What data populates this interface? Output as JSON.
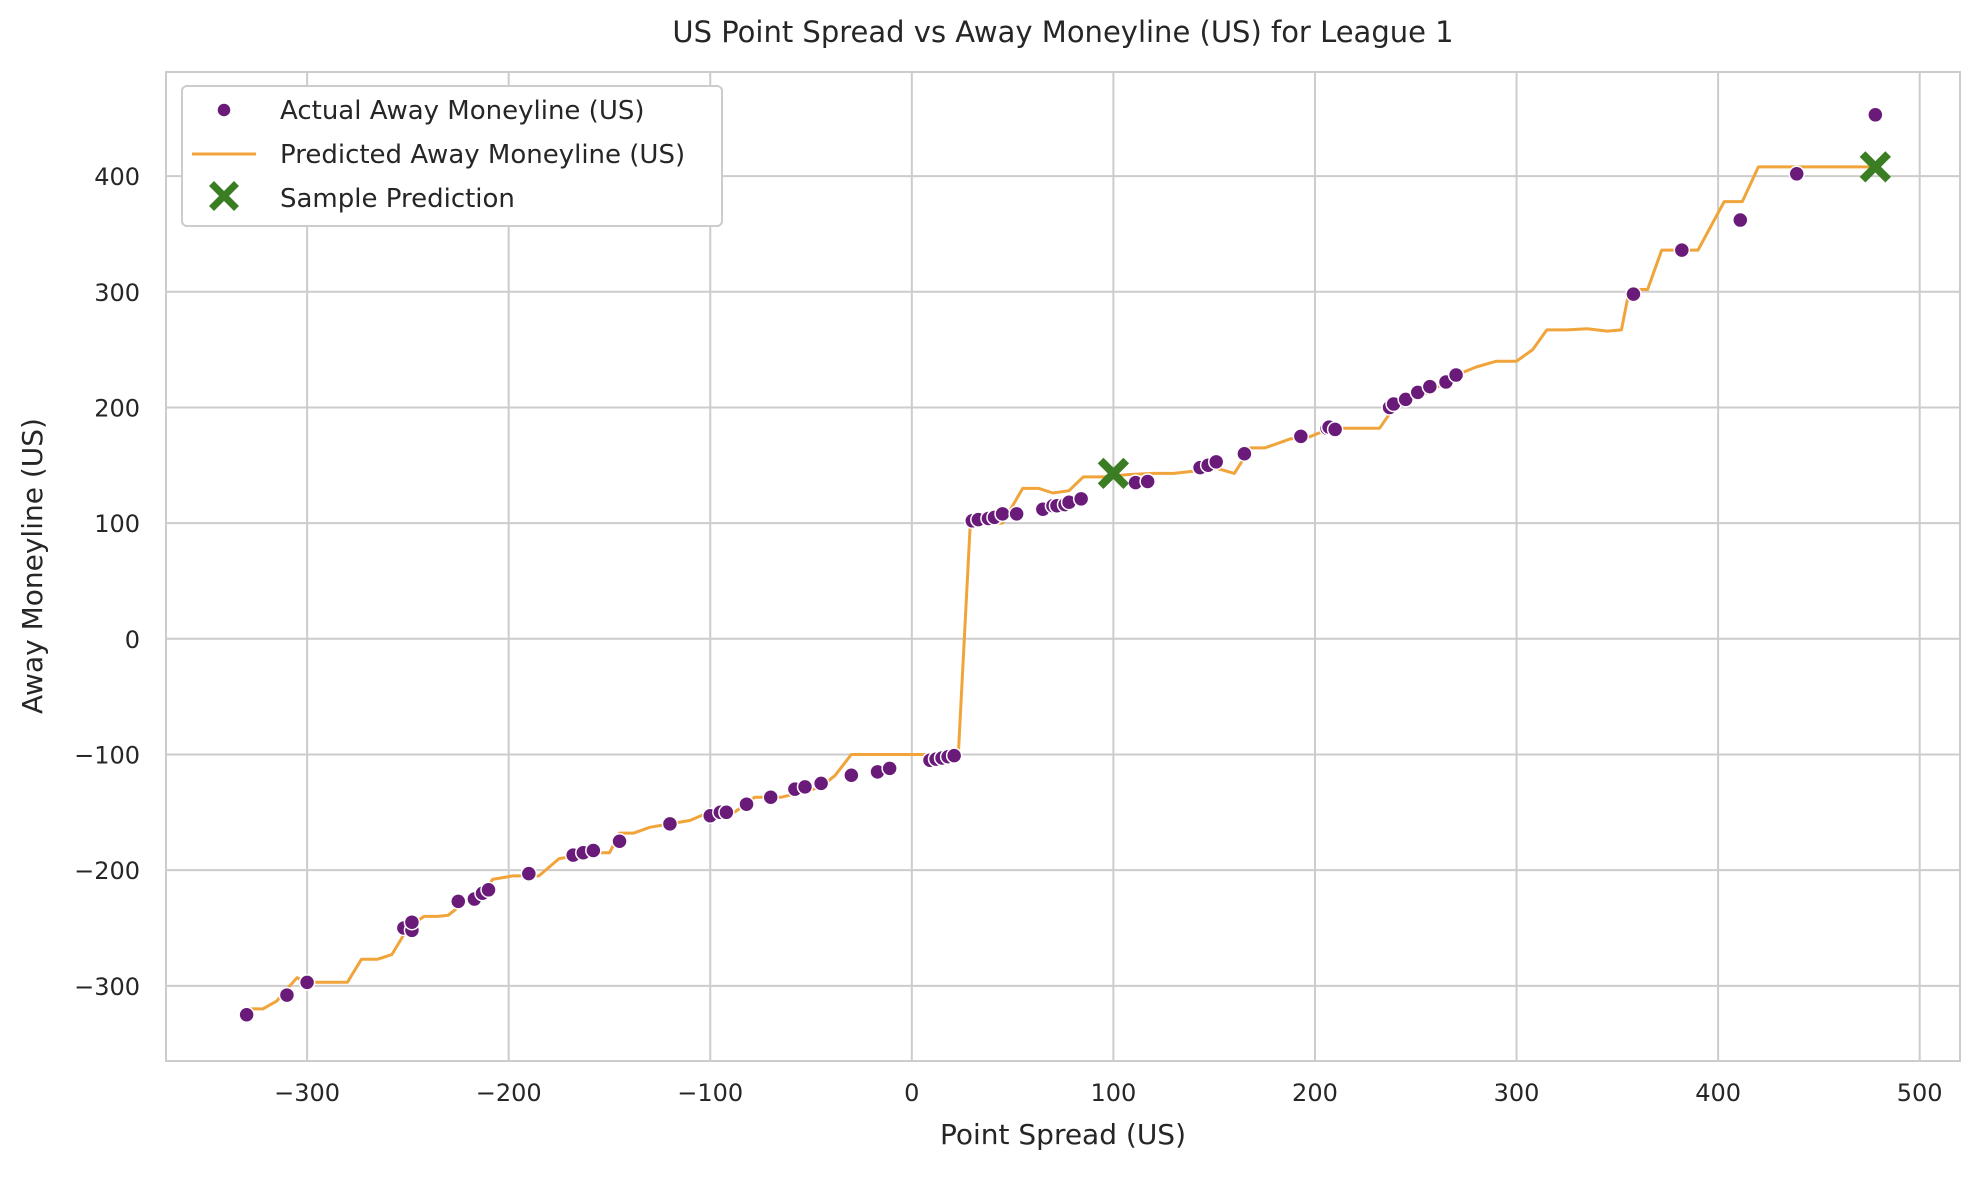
{
  "chart_data": {
    "type": "scatter",
    "title": "US Point Spread vs Away Moneyline (US) for League 1",
    "xlabel": "Point Spread (US)",
    "ylabel": "Away Moneyline (US)",
    "xlim": [
      -370,
      520
    ],
    "ylim": [
      -365,
      490
    ],
    "xticks": [
      -300,
      -200,
      -100,
      0,
      100,
      200,
      300,
      400,
      500
    ],
    "xtick_labels": [
      "−300",
      "−200",
      "−100",
      "0",
      "100",
      "200",
      "300",
      "400",
      "500"
    ],
    "yticks": [
      -300,
      -200,
      -100,
      0,
      100,
      200,
      300,
      400
    ],
    "ytick_labels": [
      "−300",
      "−200",
      "−100",
      "0",
      "100",
      "200",
      "300",
      "400"
    ],
    "grid": true,
    "legend_position": "top-left",
    "colors": {
      "actual": "#6a1b7a",
      "predicted": "#f0a43a",
      "sample": "#3a7d22",
      "grid": "#cccccc",
      "spine": "#cccccc",
      "text": "#262626"
    },
    "legend": [
      {
        "label": "Actual Away Moneyline (US)",
        "marker": "circle"
      },
      {
        "label": "Predicted Away Moneyline (US)",
        "marker": "line"
      },
      {
        "label": "Sample Prediction",
        "marker": "x"
      }
    ],
    "series": [
      {
        "name": "Actual Away Moneyline (US)",
        "type": "scatter",
        "points": [
          [
            -330,
            -325
          ],
          [
            -310,
            -308
          ],
          [
            -300,
            -297
          ],
          [
            -252,
            -250
          ],
          [
            -248,
            -252
          ],
          [
            -248,
            -245
          ],
          [
            -225,
            -227
          ],
          [
            -217,
            -225
          ],
          [
            -213,
            -220
          ],
          [
            -210,
            -217
          ],
          [
            -190,
            -203
          ],
          [
            -168,
            -187
          ],
          [
            -163,
            -185
          ],
          [
            -158,
            -183
          ],
          [
            -145,
            -175
          ],
          [
            -120,
            -160
          ],
          [
            -100,
            -153
          ],
          [
            -95,
            -150
          ],
          [
            -92,
            -150
          ],
          [
            -82,
            -143
          ],
          [
            -70,
            -137
          ],
          [
            -58,
            -130
          ],
          [
            -53,
            -128
          ],
          [
            -45,
            -125
          ],
          [
            -30,
            -118
          ],
          [
            -17,
            -115
          ],
          [
            -11,
            -112
          ],
          [
            9,
            -105
          ],
          [
            12,
            -104
          ],
          [
            15,
            -103
          ],
          [
            18,
            -102
          ],
          [
            21,
            -101
          ],
          [
            30,
            102
          ],
          [
            33,
            103
          ],
          [
            38,
            104
          ],
          [
            41,
            105
          ],
          [
            45,
            108
          ],
          [
            52,
            108
          ],
          [
            65,
            112
          ],
          [
            70,
            115
          ],
          [
            72,
            115
          ],
          [
            76,
            116
          ],
          [
            78,
            118
          ],
          [
            84,
            121
          ],
          [
            111,
            135
          ],
          [
            117,
            136
          ],
          [
            143,
            148
          ],
          [
            147,
            150
          ],
          [
            151,
            153
          ],
          [
            165,
            160
          ],
          [
            193,
            175
          ],
          [
            206,
            182
          ],
          [
            207,
            183
          ],
          [
            210,
            181
          ],
          [
            237,
            200
          ],
          [
            239,
            203
          ],
          [
            245,
            207
          ],
          [
            251,
            213
          ],
          [
            257,
            218
          ],
          [
            265,
            222
          ],
          [
            270,
            228
          ],
          [
            358,
            298
          ],
          [
            382,
            336
          ],
          [
            411,
            362
          ],
          [
            439,
            402
          ],
          [
            478,
            453
          ]
        ]
      },
      {
        "name": "Predicted Away Moneyline (US)",
        "type": "line",
        "points": [
          [
            -330,
            -320
          ],
          [
            -322,
            -320
          ],
          [
            -315,
            -313
          ],
          [
            -305,
            -293
          ],
          [
            -300,
            -297
          ],
          [
            -280,
            -297
          ],
          [
            -273,
            -277
          ],
          [
            -265,
            -277
          ],
          [
            -258,
            -273
          ],
          [
            -250,
            -250
          ],
          [
            -242,
            -240
          ],
          [
            -235,
            -240
          ],
          [
            -230,
            -239
          ],
          [
            -220,
            -225
          ],
          [
            -215,
            -227
          ],
          [
            -208,
            -208
          ],
          [
            -198,
            -205
          ],
          [
            -190,
            -205
          ],
          [
            -185,
            -205
          ],
          [
            -175,
            -190
          ],
          [
            -168,
            -188
          ],
          [
            -160,
            -185
          ],
          [
            -150,
            -185
          ],
          [
            -145,
            -168
          ],
          [
            -138,
            -168
          ],
          [
            -130,
            -163
          ],
          [
            -120,
            -160
          ],
          [
            -110,
            -157
          ],
          [
            -102,
            -151
          ],
          [
            -95,
            -150
          ],
          [
            -88,
            -150
          ],
          [
            -78,
            -137
          ],
          [
            -65,
            -137
          ],
          [
            -55,
            -133
          ],
          [
            -45,
            -128
          ],
          [
            -38,
            -118
          ],
          [
            -30,
            -100
          ],
          [
            20,
            -100
          ],
          [
            23,
            -102
          ],
          [
            29,
            100
          ],
          [
            45,
            100
          ],
          [
            55,
            130
          ],
          [
            63,
            130
          ],
          [
            70,
            126
          ],
          [
            78,
            128
          ],
          [
            85,
            140
          ],
          [
            95,
            140
          ],
          [
            108,
            142
          ],
          [
            120,
            143
          ],
          [
            130,
            143
          ],
          [
            140,
            145
          ],
          [
            150,
            148
          ],
          [
            160,
            143
          ],
          [
            168,
            165
          ],
          [
            175,
            165
          ],
          [
            180,
            168
          ],
          [
            188,
            173
          ],
          [
            195,
            173
          ],
          [
            205,
            180
          ],
          [
            210,
            182
          ],
          [
            232,
            182
          ],
          [
            240,
            202
          ],
          [
            255,
            212
          ],
          [
            265,
            222
          ],
          [
            270,
            228
          ],
          [
            280,
            235
          ],
          [
            290,
            240
          ],
          [
            300,
            240
          ],
          [
            308,
            250
          ],
          [
            315,
            267
          ],
          [
            325,
            267
          ],
          [
            335,
            268
          ],
          [
            345,
            266
          ],
          [
            352,
            267
          ],
          [
            356,
            302
          ],
          [
            365,
            302
          ],
          [
            372,
            336
          ],
          [
            385,
            336
          ],
          [
            390,
            336
          ],
          [
            403,
            378
          ],
          [
            412,
            378
          ],
          [
            420,
            408
          ],
          [
            440,
            408
          ],
          [
            460,
            408
          ],
          [
            480,
            408
          ]
        ]
      },
      {
        "name": "Sample Prediction",
        "type": "scatter",
        "points": [
          [
            100,
            143
          ],
          [
            478,
            408
          ]
        ]
      }
    ]
  }
}
